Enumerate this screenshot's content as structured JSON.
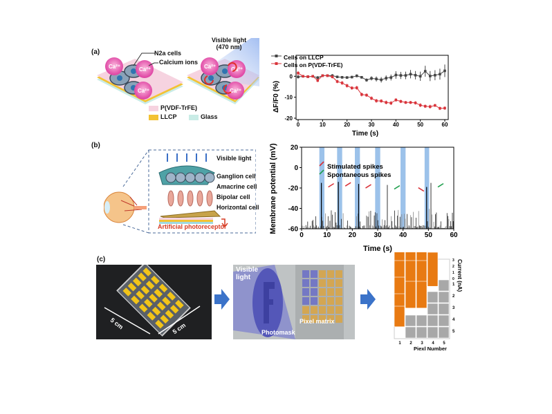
{
  "panel_labels": {
    "a": "(a)",
    "b": "(b)",
    "c": "(c)"
  },
  "panel_a_schematic": {
    "light_label_line1": "Visible light",
    "light_label_line2": "(470 nm)",
    "cells_label": "N2a cells",
    "ions_label": "Calcium ions",
    "ion_symbol": "Ca²⁺",
    "legend": [
      {
        "label": "P(VDF-TrFE)",
        "color": "#f6d3e0"
      },
      {
        "label": "LLCP",
        "color": "#f3c233"
      },
      {
        "label": "Glass",
        "color": "#c9ece6"
      }
    ]
  },
  "panel_b_schematic": {
    "layer_labels": [
      "Visible light",
      "Ganglion cell",
      "Amacrine cell",
      "Bipolar cell",
      "Horizontal cell"
    ],
    "photoreceptor_label": "Artificial photoreceptor",
    "photoreceptor_color": "#d63a22"
  },
  "panel_c": {
    "size_label_1": "5 cm",
    "size_label_2": "5 cm",
    "light_label_line1": "Visible",
    "light_label_line2": "light",
    "mask_label": "Photomask",
    "pixel_label": "Pixel matrix",
    "bar3d": {
      "xlabel": "Piexl Number",
      "zlabel": "Current (nA)",
      "x_ticks": [
        "1",
        "2",
        "3",
        "4",
        "5"
      ],
      "y_ticks": [
        "1",
        "2",
        "3",
        "4",
        "5"
      ],
      "z_ticks": [
        "0",
        "1",
        "2",
        "3"
      ],
      "colors": {
        "on": "#e87a12",
        "off": "#a8a8a8"
      }
    }
  },
  "chart_data": [
    {
      "type": "line",
      "xlabel": "Time (s)",
      "ylabel": "ΔF/F0 (%)",
      "xlim": [
        0,
        60
      ],
      "ylim": [
        -20,
        10
      ],
      "x_ticks": [
        "0",
        "10",
        "20",
        "30",
        "40",
        "50",
        "60"
      ],
      "y_ticks": [
        "0",
        "-10",
        "-20"
      ],
      "legend_position": "top-left",
      "x": [
        0,
        2,
        4,
        6,
        8,
        10,
        12,
        14,
        16,
        18,
        20,
        22,
        24,
        26,
        28,
        30,
        32,
        34,
        36,
        38,
        40,
        42,
        44,
        46,
        48,
        50,
        52,
        54,
        56,
        58,
        60
      ],
      "series": [
        {
          "name": "Cells on LLCP",
          "color": "#444444",
          "values": [
            -0.3,
            0,
            -0.2,
            0,
            -0.7,
            0.3,
            0.3,
            0.3,
            -0.3,
            -0.5,
            -0.6,
            -0.4,
            0.2,
            -0.5,
            -1.8,
            -1,
            -1.3,
            -1.7,
            -0.9,
            -0.6,
            0.6,
            0.4,
            0.4,
            1,
            0.5,
            0,
            2.4,
            0.1,
            0.5,
            1,
            2.6
          ],
          "errors": [
            0.8,
            0.4,
            0.5,
            0.5,
            0.8,
            0.6,
            0.6,
            0.7,
            0.6,
            0.6,
            0.6,
            0.6,
            0.7,
            0.6,
            0.8,
            1,
            1.2,
            1.3,
            1.3,
            1.4,
            1.8,
            1.7,
            1.8,
            2,
            2,
            2.2,
            2.6,
            2.4,
            2.4,
            2.6,
            3
          ]
        },
        {
          "name": "Cells on P(VDF-TrFE)",
          "color": "#d9343b",
          "values": [
            1.5,
            0,
            -0.2,
            0,
            -2,
            0.3,
            0.3,
            -0.3,
            -2.5,
            -3.2,
            -4.5,
            -5.6,
            -5.5,
            -8.7,
            -9,
            -10.5,
            -11.7,
            -11.8,
            -12.5,
            -12.8,
            -11.3,
            -12,
            -12.5,
            -12.5,
            -12.7,
            -13.8,
            -14.3,
            -14.5,
            -13.9,
            -15.3,
            -15.2
          ],
          "errors": [
            0.9,
            0.4,
            0.5,
            0.5,
            0.8,
            0.6,
            0.6,
            0.7,
            0.8,
            0.9,
            0.9,
            0.8,
            0.9,
            0.9,
            0.8,
            0.9,
            0.9,
            0.8,
            0.9,
            0.9,
            0.8,
            0.8,
            0.7,
            0.7,
            0.8,
            0.9,
            0.8,
            0.9,
            0.7,
            0.8,
            0.8
          ]
        }
      ]
    },
    {
      "type": "line",
      "xlabel": "Time (s)",
      "ylabel": "Membrane potential (mV)",
      "xlim": [
        0,
        60
      ],
      "ylim": [
        -60,
        20
      ],
      "x_ticks": [
        "0",
        "10",
        "20",
        "30",
        "40",
        "50",
        "60"
      ],
      "y_ticks": [
        "20",
        "0",
        "-20",
        "-40",
        "-60"
      ],
      "baseline": -60,
      "light_pulses": [
        [
          7,
          9
        ],
        [
          14,
          16
        ],
        [
          21,
          23
        ],
        [
          29,
          31
        ],
        [
          39,
          41
        ],
        [
          48.5,
          50.3
        ]
      ],
      "light_color": "#4a90d9",
      "legend": [
        {
          "label": "Stimulated spikes",
          "color": "#d9343b"
        },
        {
          "label": "Spontaneous spikes",
          "color": "#22a050"
        }
      ],
      "spikes": [
        {
          "t": 7.8,
          "peak": -15,
          "kind": "stimulated"
        },
        {
          "t": 14.5,
          "peak": -14,
          "kind": "stimulated"
        },
        {
          "t": 22.5,
          "peak": -16,
          "kind": "stimulated"
        },
        {
          "t": 33.8,
          "peak": -17,
          "kind": "spontaneous"
        },
        {
          "t": 49.3,
          "peak": -19,
          "kind": "stimulated"
        },
        {
          "t": 51,
          "peak": -15,
          "kind": "spontaneous"
        }
      ]
    }
  ]
}
